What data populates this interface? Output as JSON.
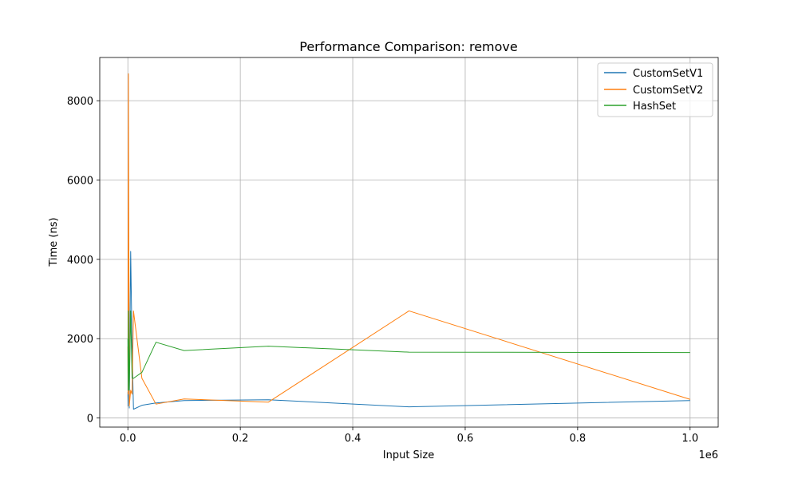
{
  "chart_data": {
    "type": "line",
    "title": "Performance Comparison: remove",
    "xlabel": "Input Size",
    "ylabel": "Time (ns)",
    "x_offset_label": "1e6",
    "xlim": [
      -0.05,
      1.05
    ],
    "ylim": [
      -230,
      9090
    ],
    "x_ticks": [
      0,
      0.2,
      0.4,
      0.6,
      0.8,
      1.0
    ],
    "x_tick_labels": [
      "0.0",
      "0.2",
      "0.4",
      "0.6",
      "0.8",
      "1.0"
    ],
    "y_ticks": [
      0,
      2000,
      4000,
      6000,
      8000
    ],
    "y_tick_labels": [
      "0",
      "2000",
      "4000",
      "6000",
      "8000"
    ],
    "grid": true,
    "legend_position": "top-right",
    "series": [
      {
        "name": "CustomSetV1",
        "color": "#1f77b4",
        "x": [
          0.0001,
          0.0005,
          0.001,
          0.0025,
          0.005,
          0.0075,
          0.01,
          0.025,
          0.05,
          0.1,
          0.25,
          0.5,
          1.0
        ],
        "y": [
          650,
          300,
          3000,
          250,
          4200,
          1800,
          220,
          320,
          380,
          440,
          460,
          280,
          440
        ]
      },
      {
        "name": "CustomSetV2",
        "color": "#ff7f0e",
        "x": [
          0.0001,
          0.0005,
          0.001,
          0.0025,
          0.005,
          0.0075,
          0.01,
          0.025,
          0.05,
          0.1,
          0.25,
          0.5,
          1.0
        ],
        "y": [
          1800,
          600,
          8680,
          300,
          700,
          600,
          2700,
          1000,
          350,
          480,
          400,
          2700,
          470
        ]
      },
      {
        "name": "HashSet",
        "color": "#2ca02c",
        "x": [
          0.0001,
          0.0005,
          0.001,
          0.0025,
          0.005,
          0.0075,
          0.01,
          0.025,
          0.05,
          0.1,
          0.25,
          0.5,
          1.0
        ],
        "y": [
          2000,
          700,
          2700,
          700,
          2700,
          1000,
          1000,
          1150,
          1910,
          1700,
          1810,
          1660,
          1650
        ]
      }
    ]
  }
}
